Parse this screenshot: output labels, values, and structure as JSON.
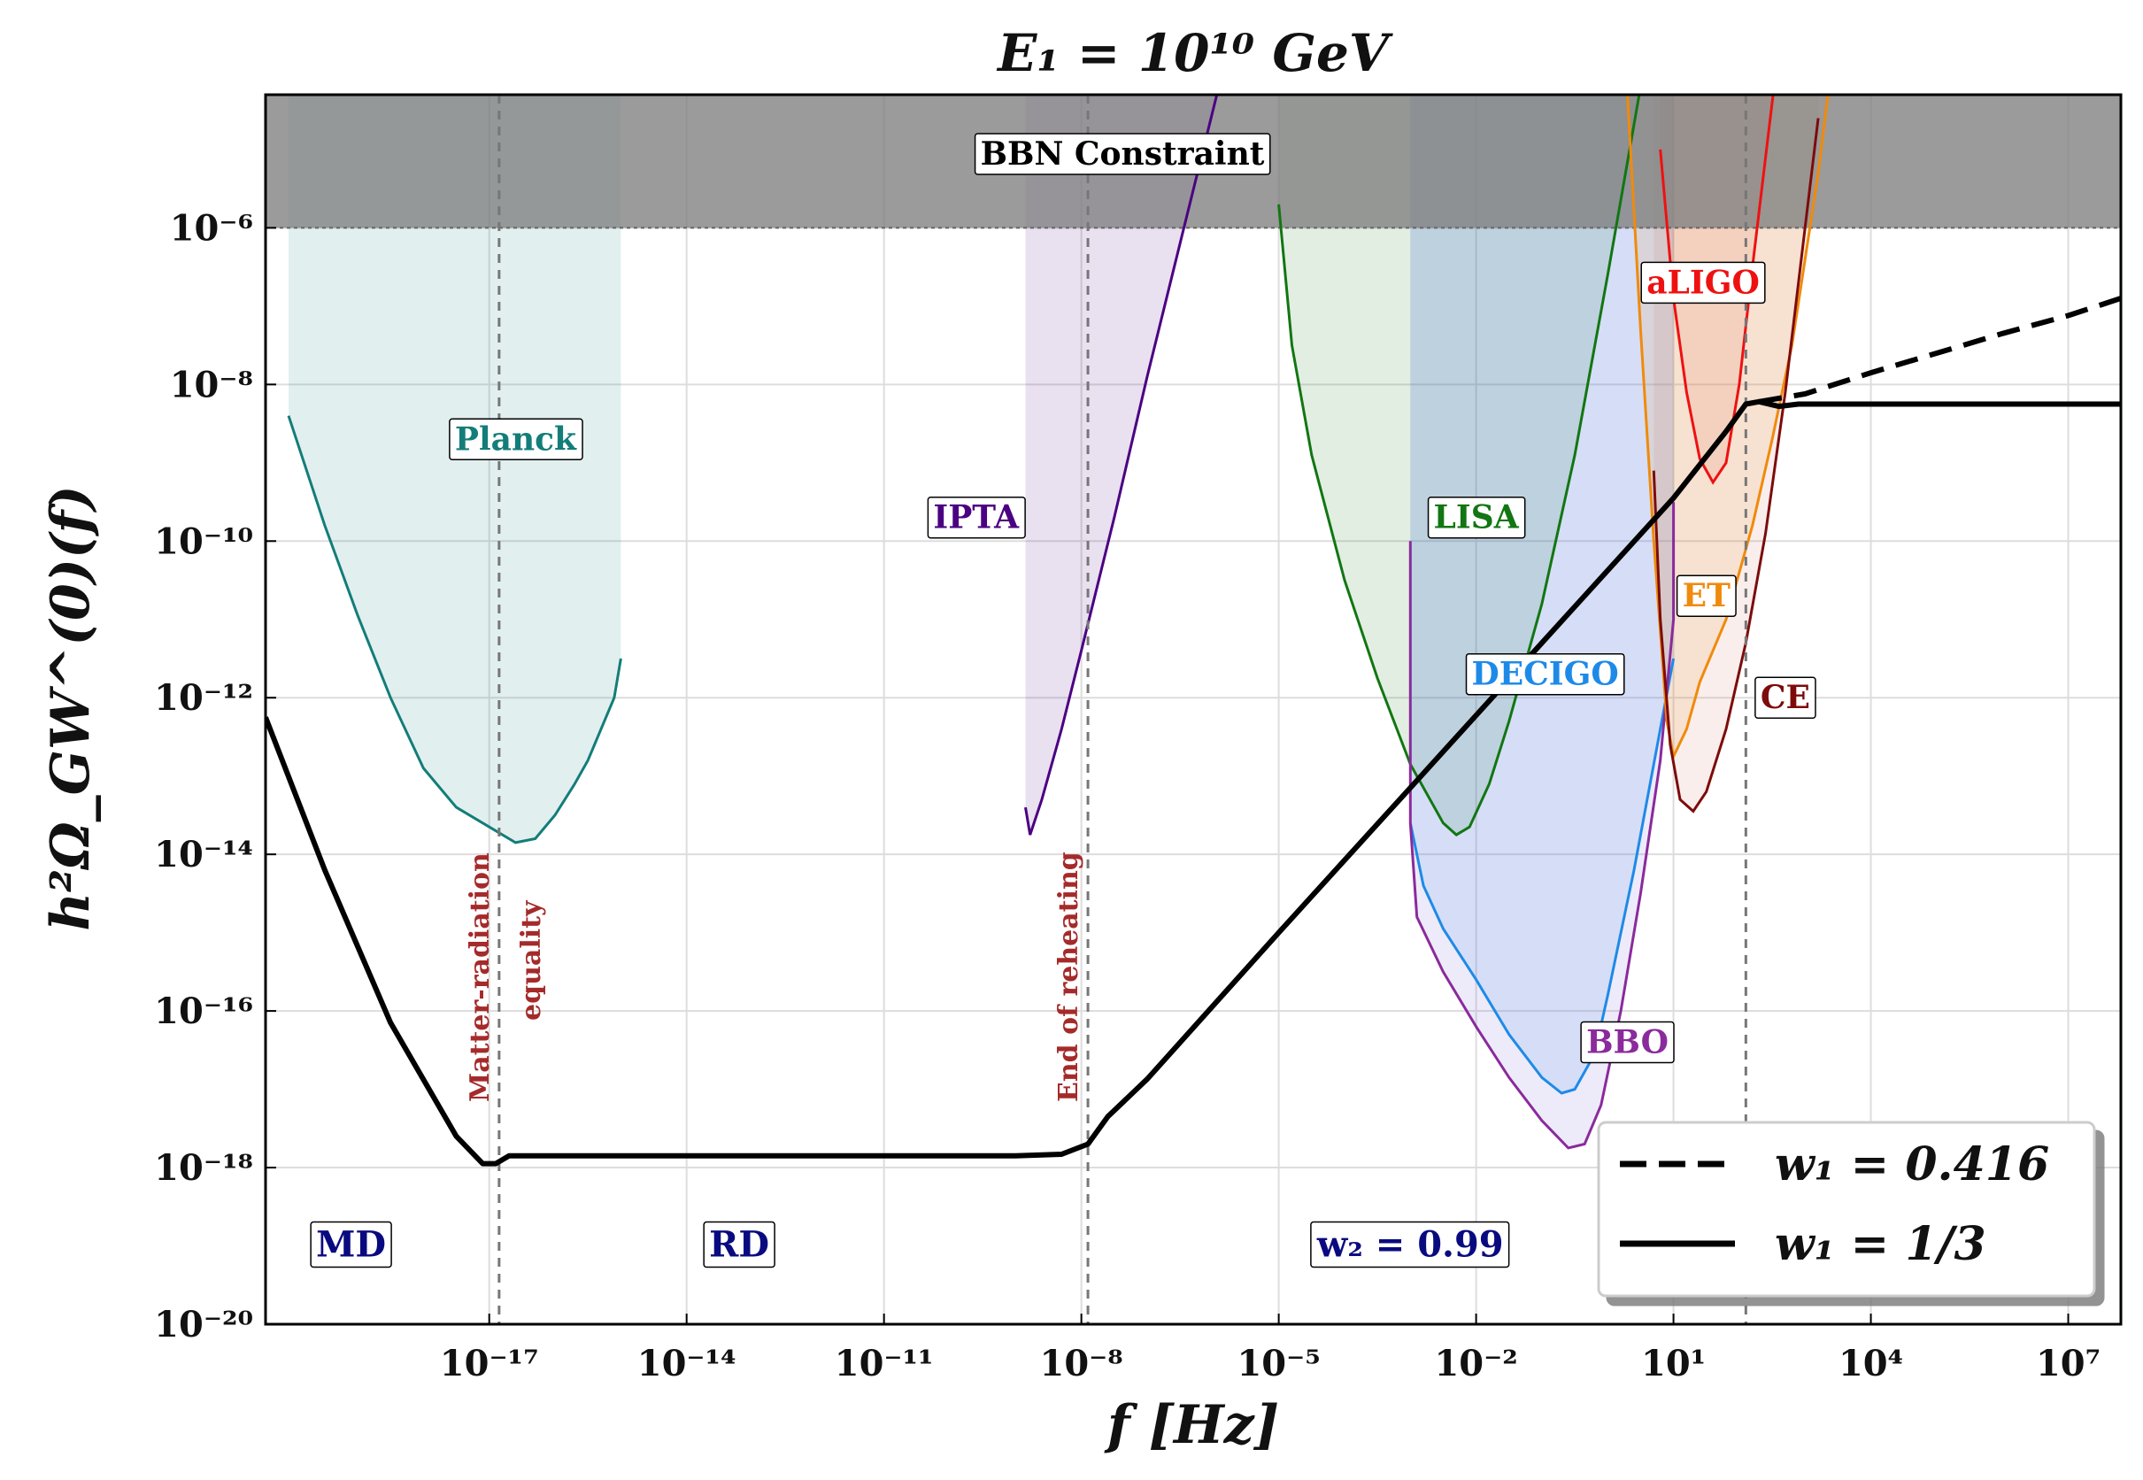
{
  "chart_data": {
    "type": "line",
    "title": "E₁ = 10¹⁰ GeV",
    "xlabel": "f [Hz]",
    "ylabel": "h²Ω_GW^(0)(f)",
    "xscale": "log",
    "yscale": "log",
    "xlim_log10": [
      -20.4,
      7.8
    ],
    "ylim_log10": [
      -20,
      -4.3
    ],
    "x_ticks": [
      {
        "exp": -17,
        "label": "10⁻¹⁷"
      },
      {
        "exp": -14,
        "label": "10⁻¹⁴"
      },
      {
        "exp": -11,
        "label": "10⁻¹¹"
      },
      {
        "exp": -8,
        "label": "10⁻⁸"
      },
      {
        "exp": -5,
        "label": "10⁻⁵"
      },
      {
        "exp": -2,
        "label": "10⁻²"
      },
      {
        "exp": 1,
        "label": "10¹"
      },
      {
        "exp": 4,
        "label": "10⁴"
      },
      {
        "exp": 7,
        "label": "10⁷"
      }
    ],
    "y_ticks": [
      {
        "exp": -6,
        "label": "10⁻⁶"
      },
      {
        "exp": -8,
        "label": "10⁻⁸"
      },
      {
        "exp": -10,
        "label": "10⁻¹⁰"
      },
      {
        "exp": -12,
        "label": "10⁻¹²"
      },
      {
        "exp": -14,
        "label": "10⁻¹⁴"
      },
      {
        "exp": -16,
        "label": "10⁻¹⁶"
      },
      {
        "exp": -18,
        "label": "10⁻¹⁸"
      },
      {
        "exp": -20,
        "label": "10⁻²⁰"
      }
    ],
    "grid": true,
    "bbn_constraint": {
      "label": "BBN Constraint",
      "y_min_log10": -6,
      "color": "#7f7f7f"
    },
    "vertical_markers": [
      {
        "name": "matter-radiation-equality",
        "x_log10": -16.85,
        "label_line1": "Matter-radiation",
        "label_line2": "equality"
      },
      {
        "name": "end-of-reheating",
        "x_log10": -7.9,
        "label_line1": "End of reheating",
        "label_line2": ""
      },
      {
        "name": "end-of-stiff-epoch",
        "x_log10": 2.1,
        "label_line1": "",
        "label_line2": ""
      }
    ],
    "regions": [
      {
        "label": "MD",
        "x_log10": -19.1,
        "y_log10": -19.0
      },
      {
        "label": "RD",
        "x_log10": -13.2,
        "y_log10": -19.0
      },
      {
        "label": "w₂ = 0.99",
        "x_log10": -3.0,
        "y_log10": -19.0
      }
    ],
    "series": [
      {
        "name": "w₁ = 1/3",
        "style": "solid",
        "color": "#000000",
        "x_log10": [
          -20.4,
          -19.5,
          -18.5,
          -17.5,
          -17.1,
          -16.9,
          -16.7,
          -16.5,
          -16.0,
          -15.0,
          -12.0,
          -9.0,
          -8.3,
          -7.9,
          -7.6,
          -7.0,
          -5.0,
          -3.0,
          -1.0,
          1.0,
          1.8,
          2.1,
          2.3,
          2.6,
          2.9,
          3.3,
          5.0,
          7.8
        ],
        "y_log10": [
          -12.25,
          -14.2,
          -16.15,
          -17.6,
          -17.95,
          -17.95,
          -17.85,
          -17.85,
          -17.85,
          -17.85,
          -17.85,
          -17.85,
          -17.83,
          -17.7,
          -17.35,
          -16.87,
          -15.0,
          -13.15,
          -11.3,
          -9.45,
          -8.6,
          -8.25,
          -8.22,
          -8.28,
          -8.25,
          -8.25,
          -8.25,
          -8.25
        ]
      },
      {
        "name": "w₁ = 0.416",
        "style": "dashed",
        "color": "#000000",
        "x_log10": [
          2.3,
          3.0,
          4.0,
          5.0,
          6.0,
          7.0,
          7.8
        ],
        "y_log10": [
          -8.22,
          -8.12,
          -7.85,
          -7.6,
          -7.35,
          -7.12,
          -6.9
        ]
      }
    ],
    "sensitivity_curves": [
      {
        "label": "Planck",
        "color": "#137d79",
        "fill": "#137d79",
        "x_log10": [
          -20.05,
          -19.5,
          -19.0,
          -18.5,
          -18.0,
          -17.5,
          -17.0,
          -16.6,
          -16.3,
          -16.0,
          -15.7,
          -15.5,
          -15.1,
          -15.0
        ],
        "y_log10": [
          -8.4,
          -9.8,
          -10.95,
          -12.0,
          -12.9,
          -13.4,
          -13.65,
          -13.85,
          -13.8,
          -13.5,
          -13.1,
          -12.8,
          -12.0,
          -11.5
        ],
        "label_x_log10": -16.6,
        "label_y_log10": -8.7
      },
      {
        "label": "IPTA",
        "color": "#4b0082",
        "fill": "#4b0082",
        "x_log10": [
          -8.85,
          -8.78,
          -8.6,
          -8.3,
          -8.0,
          -7.5,
          -7.0,
          -6.5,
          -6.0,
          -5.5
        ],
        "y_log10": [
          -13.4,
          -13.75,
          -13.3,
          -12.4,
          -11.4,
          -9.7,
          -7.9,
          -6.2,
          -4.5,
          -2.8
        ],
        "label_x_log10": -9.6,
        "label_y_log10": -9.7
      },
      {
        "label": "LISA",
        "color": "#127612",
        "fill": "#127612",
        "x_log10": [
          -5.0,
          -4.8,
          -4.5,
          -4.0,
          -3.5,
          -3.0,
          -2.5,
          -2.3,
          -2.1,
          -1.8,
          -1.5,
          -1.0,
          -0.5,
          0.0,
          0.5
        ],
        "y_log10": [
          -5.7,
          -7.5,
          -8.9,
          -10.5,
          -11.75,
          -12.85,
          -13.6,
          -13.75,
          -13.65,
          -13.1,
          -12.3,
          -10.8,
          -8.9,
          -6.6,
          -4.2
        ],
        "label_x_log10": -2.0,
        "label_y_log10": -9.7
      },
      {
        "label": "DECIGO",
        "color": "#1e8ae8",
        "fill": "#1e8ae8",
        "x_log10": [
          -3.0,
          -2.8,
          -2.5,
          -2.0,
          -1.5,
          -1.0,
          -0.7,
          -0.5,
          -0.2,
          0.0,
          0.4,
          0.8,
          1.0
        ],
        "y_log10": [
          -13.6,
          -14.4,
          -14.95,
          -15.6,
          -16.3,
          -16.85,
          -17.05,
          -17.0,
          -16.55,
          -15.8,
          -14.2,
          -12.4,
          -11.5
        ],
        "label_x_log10": -0.95,
        "label_y_log10": -11.7
      },
      {
        "label": "BBO",
        "color": "#8a2a9c",
        "fill": "#6a5acd",
        "x_log10": [
          -3.0,
          -3.0,
          -2.9,
          -2.5,
          -2.0,
          -1.5,
          -1.0,
          -0.6,
          -0.35,
          -0.1,
          0.2,
          0.5,
          0.8,
          1.0,
          1.0
        ],
        "y_log10": [
          -10.0,
          -13.6,
          -14.8,
          -15.5,
          -16.2,
          -16.85,
          -17.4,
          -17.75,
          -17.7,
          -17.2,
          -16.0,
          -14.5,
          -12.8,
          -11.0,
          -9.5
        ],
        "label_x_log10": 0.3,
        "label_y_log10": -16.4
      },
      {
        "label": "aLIGO",
        "color": "#ee1111",
        "fill": "#e85545",
        "x_log10": [
          0.8,
          1.0,
          1.2,
          1.4,
          1.6,
          1.8,
          2.0,
          2.2,
          2.4,
          2.6
        ],
        "y_log10": [
          -5.0,
          -6.9,
          -8.1,
          -8.95,
          -9.25,
          -9.0,
          -8.0,
          -6.5,
          -5.1,
          -3.7
        ],
        "label_x_log10": 1.45,
        "label_y_log10": -6.7
      },
      {
        "label": "ET",
        "color": "#f08a0b",
        "fill": "#f08a0b",
        "x_log10": [
          0.3,
          0.5,
          0.7,
          0.9,
          1.0,
          1.2,
          1.4,
          1.8,
          2.2,
          2.5,
          2.8,
          3.2,
          3.6
        ],
        "y_log10": [
          -4.3,
          -7.3,
          -10.0,
          -12.3,
          -12.75,
          -12.4,
          -11.8,
          -11.0,
          -9.8,
          -8.7,
          -7.5,
          -5.3,
          -2.6
        ],
        "label_x_log10": 1.5,
        "label_y_log10": -10.7
      },
      {
        "label": "CE",
        "color": "#7d0b0b",
        "fill": "#d07060",
        "x_log10": [
          0.7,
          0.8,
          0.95,
          1.1,
          1.3,
          1.5,
          1.8,
          2.1,
          2.4,
          2.7,
          3.0,
          3.2
        ],
        "y_log10": [
          -9.1,
          -11.0,
          -12.6,
          -13.3,
          -13.45,
          -13.2,
          -12.4,
          -11.3,
          -9.9,
          -8.1,
          -6.0,
          -4.6
        ],
        "label_x_log10": 2.7,
        "label_y_log10": -12.0
      }
    ],
    "legend": {
      "position": "lower-right",
      "entries": [
        {
          "label": "w₁ = 0.416",
          "style": "dashed"
        },
        {
          "label": "w₁ = 1/3",
          "style": "solid"
        }
      ]
    }
  }
}
